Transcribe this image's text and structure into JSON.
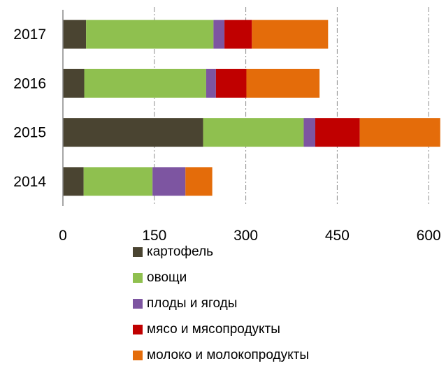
{
  "chart_data": {
    "type": "bar",
    "orientation": "horizontal",
    "stacked": true,
    "title": "",
    "xlabel": "",
    "ylabel": "",
    "categories": [
      "2017",
      "2016",
      "2015",
      "2014"
    ],
    "xlim": [
      0,
      620
    ],
    "xticks": [
      0,
      150,
      300,
      450,
      600
    ],
    "grid": true,
    "legend_position": "bottom",
    "series": [
      {
        "name": "картофель",
        "color": "#4a4431",
        "values": [
          38,
          35,
          230,
          34
        ]
      },
      {
        "name": "овощи",
        "color": "#8fc04f",
        "values": [
          209,
          200,
          165,
          113
        ]
      },
      {
        "name": "плоды и ягоды",
        "color": "#7d55a1",
        "values": [
          18,
          16,
          19,
          54
        ]
      },
      {
        "name": "мясо и мясопродукты",
        "color": "#c00000",
        "values": [
          45,
          50,
          73,
          0
        ]
      },
      {
        "name": "молоко и молокопродукты",
        "color": "#e46c0a",
        "values": [
          125,
          120,
          132,
          44
        ]
      }
    ]
  }
}
